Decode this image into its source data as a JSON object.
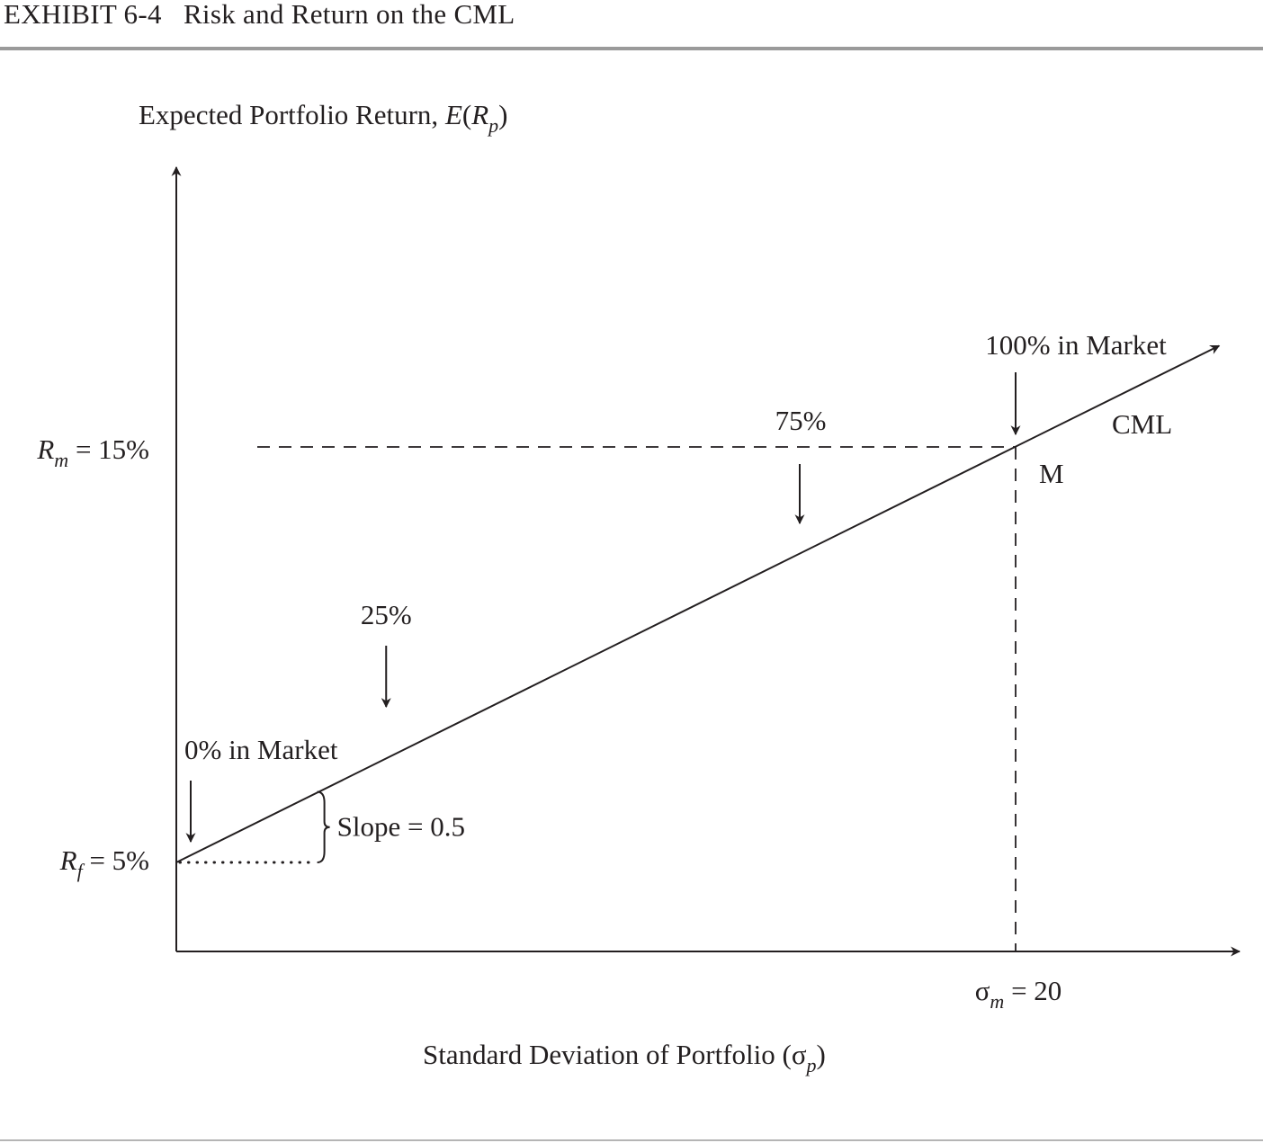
{
  "exhibit": {
    "number": "EXHIBIT 6-4",
    "title": "Risk and Return on the CML"
  },
  "chart_data": {
    "type": "line",
    "title": "Risk and Return on the CML",
    "ylabel": {
      "main": "Expected Portfolio Return, ",
      "e": "E",
      "open": "(",
      "r": "R",
      "sub": "p",
      "close": ")"
    },
    "xlabel": {
      "main": "Standard Deviation of Portfolio (",
      "sigma": "σ",
      "sub": "p",
      "close": ")"
    },
    "x_domain": [
      0,
      25
    ],
    "y_domain": [
      3,
      20
    ],
    "series": [
      {
        "name": "CML",
        "x": [
          0,
          20,
          25
        ],
        "y": [
          5,
          15,
          17.5
        ]
      }
    ],
    "rf": {
      "value": 5,
      "sym": "R",
      "sub": "f",
      "rest": " = 5%"
    },
    "rm": {
      "value": 15,
      "sym": "R",
      "sub": "m",
      "rest": " = 15%"
    },
    "sigma_m": {
      "value": 20,
      "sym": "σ",
      "sub": "m",
      "rest": " = 20"
    },
    "market_point": {
      "label": "M",
      "x": 20,
      "y": 15
    },
    "line_label": "CML",
    "allocations": [
      {
        "label": "0% in Market",
        "x": 0,
        "y": 5
      },
      {
        "label": "25%",
        "x": 5,
        "y": 7.5
      },
      {
        "label": "75%",
        "x": 15,
        "y": 12.5
      },
      {
        "label": "100% in Market",
        "x": 20,
        "y": 15
      }
    ],
    "slope_label": "Slope = 0.5",
    "slope_value": 0.5,
    "grid": false,
    "legend": "none"
  }
}
